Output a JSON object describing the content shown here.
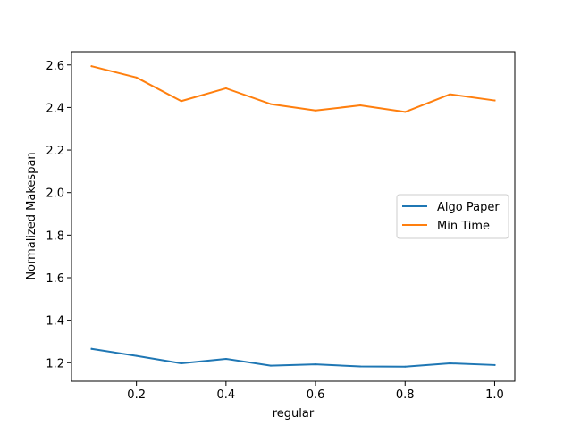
{
  "chart_data": {
    "type": "line",
    "title": "",
    "xlabel": "regular",
    "ylabel": "Normalized Makespan",
    "xlim": [
      0.055,
      1.045
    ],
    "ylim": [
      1.113,
      2.662
    ],
    "xticks": [
      0.2,
      0.4,
      0.6,
      0.8,
      1.0
    ],
    "xtick_labels": [
      "0.2",
      "0.4",
      "0.6",
      "0.8",
      "1.0"
    ],
    "yticks": [
      1.2,
      1.4,
      1.6,
      1.8,
      2.0,
      2.2,
      2.4,
      2.6
    ],
    "ytick_labels": [
      "1.2",
      "1.4",
      "1.6",
      "1.8",
      "2.0",
      "2.2",
      "2.4",
      "2.6"
    ],
    "grid": false,
    "legend_position": "center-right",
    "x": [
      0.1,
      0.2,
      0.3,
      0.4,
      0.5,
      0.6,
      0.7,
      0.8,
      0.9,
      1.0
    ],
    "series": [
      {
        "name": "Algo Paper",
        "color": "#1f77b4",
        "values": [
          1.265,
          1.232,
          1.197,
          1.218,
          1.186,
          1.192,
          1.182,
          1.181,
          1.197,
          1.189
        ]
      },
      {
        "name": "Min Time",
        "color": "#ff7f0e",
        "values": [
          2.594,
          2.541,
          2.43,
          2.49,
          2.416,
          2.386,
          2.41,
          2.379,
          2.462,
          2.433
        ]
      }
    ]
  }
}
